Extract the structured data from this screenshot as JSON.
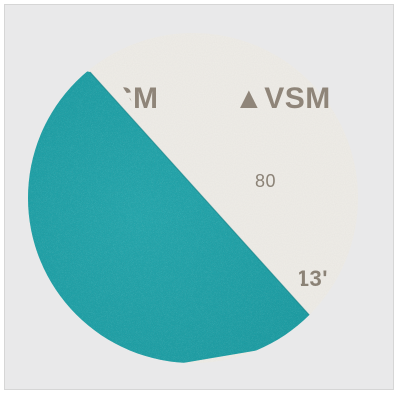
{
  "image": {
    "subject": "sanding disc",
    "colors": {
      "background": "#e9e9ea",
      "paper_backing": "#efede8",
      "abrasive_surface": "#1aa0a6",
      "print_ink": "#8f8579"
    }
  },
  "printed_text": {
    "brand_right": "▲VSM",
    "brand_left": "VSM",
    "grit": "80",
    "code": "713'"
  }
}
